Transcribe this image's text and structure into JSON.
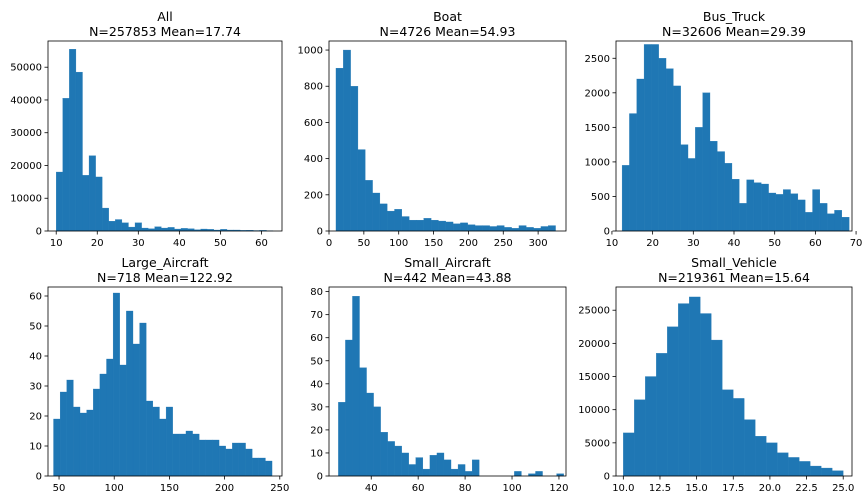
{
  "chart_data": [
    {
      "type": "bar",
      "title": "All",
      "subtitle": "N=257853 Mean=17.74",
      "xlim": [
        8,
        65
      ],
      "ylim": [
        0,
        58000
      ],
      "xticks": [
        10,
        20,
        30,
        40,
        50,
        60
      ],
      "yticks": [
        0,
        10000,
        20000,
        30000,
        40000,
        50000
      ],
      "bin_edges": [
        10,
        11.6,
        13.2,
        14.8,
        16.4,
        18,
        19.6,
        21.2,
        22.8,
        24.4,
        26,
        27.6,
        29.2,
        30.8,
        32.4,
        34,
        35.6,
        37.2,
        38.8,
        40.4,
        42,
        43.6,
        45.2,
        46.8,
        48.4,
        50,
        51.6,
        53.2,
        54.8,
        56.4,
        58,
        59.6,
        61.2,
        62.8
      ],
      "counts": [
        18000,
        40500,
        55500,
        48500,
        17000,
        23000,
        16500,
        7000,
        3000,
        3500,
        2500,
        1200,
        2500,
        900,
        700,
        1300,
        900,
        1100,
        600,
        800,
        700,
        400,
        600,
        500,
        300,
        500,
        300,
        300,
        200,
        250,
        150,
        200,
        100
      ]
    },
    {
      "type": "bar",
      "title": "Boat",
      "subtitle": "N=4726 Mean=54.93",
      "xlim": [
        0,
        340
      ],
      "ylim": [
        0,
        1050
      ],
      "xticks": [
        0,
        50,
        100,
        150,
        200,
        250,
        300
      ],
      "yticks": [
        0,
        200,
        400,
        600,
        800,
        1000
      ],
      "bin_edges": [
        10,
        20.5,
        31,
        41.5,
        52,
        62.5,
        73,
        83.5,
        94,
        104.5,
        115,
        125.5,
        136,
        146.5,
        157,
        167.5,
        178,
        188.5,
        199,
        209.5,
        220,
        230.5,
        241,
        251.5,
        262,
        272.5,
        283,
        293.5,
        304,
        314.5,
        325
      ],
      "counts": [
        900,
        1000,
        800,
        450,
        280,
        210,
        150,
        110,
        120,
        80,
        60,
        60,
        70,
        60,
        55,
        50,
        40,
        45,
        35,
        30,
        30,
        25,
        30,
        20,
        15,
        30,
        20,
        15,
        25,
        30
      ]
    },
    {
      "type": "bar",
      "title": "Bus_Truck",
      "subtitle": "N=32606 Mean=29.39",
      "xlim": [
        11,
        69
      ],
      "ylim": [
        0,
        2750
      ],
      "xticks": [
        10,
        20,
        30,
        40,
        50,
        60,
        70
      ],
      "yticks": [
        0,
        500,
        1000,
        1500,
        2000,
        2500
      ],
      "bin_edges": [
        12.5,
        14.3,
        16.1,
        17.9,
        19.7,
        21.5,
        23.3,
        25.1,
        26.9,
        28.7,
        30.5,
        32.3,
        34.1,
        35.9,
        37.7,
        39.5,
        41.3,
        43.1,
        44.9,
        46.7,
        48.5,
        50.3,
        52.1,
        53.9,
        55.7,
        57.5,
        59.3,
        61.1,
        62.9,
        64.7,
        66.5,
        68.3
      ],
      "counts": [
        950,
        1700,
        2200,
        2700,
        2700,
        2500,
        2350,
        2100,
        1250,
        1050,
        1500,
        2000,
        1300,
        1150,
        980,
        750,
        400,
        740,
        700,
        680,
        550,
        530,
        600,
        540,
        450,
        270,
        600,
        400,
        250,
        300,
        200
      ]
    },
    {
      "type": "bar",
      "title": "Large_Aircraft",
      "subtitle": "N=718 Mean=122.92",
      "xlim": [
        40,
        252
      ],
      "ylim": [
        0,
        63
      ],
      "xticks": [
        50,
        100,
        150,
        200,
        250
      ],
      "yticks": [
        0,
        10,
        20,
        30,
        40,
        50,
        60
      ],
      "bin_edges": [
        45,
        51,
        57,
        63,
        69,
        75,
        81,
        87,
        93,
        99,
        105,
        111,
        117,
        123,
        129,
        135,
        141,
        147,
        153,
        159,
        165,
        171,
        177,
        183,
        189,
        195,
        201,
        207,
        213,
        219,
        225,
        231,
        237,
        243
      ],
      "counts": [
        19,
        28,
        32,
        23,
        21,
        22,
        29,
        34,
        39,
        61,
        37,
        55,
        44,
        51,
        25,
        23,
        19,
        23,
        14,
        14,
        15,
        14,
        12,
        12,
        12,
        10,
        9,
        11,
        11,
        9,
        6,
        6,
        5
      ]
    },
    {
      "type": "bar",
      "title": "Small_Aircraft",
      "subtitle": "N=442 Mean=43.88",
      "xlim": [
        22,
        123
      ],
      "ylim": [
        0,
        82
      ],
      "xticks": [
        40,
        60,
        80,
        100,
        120
      ],
      "yticks": [
        0,
        10,
        20,
        30,
        40,
        50,
        60,
        70,
        80
      ],
      "bin_edges": [
        26,
        29,
        32,
        35,
        38,
        41,
        44,
        47,
        50,
        53,
        56,
        59,
        62,
        65,
        68,
        71,
        74,
        77,
        80,
        83,
        86,
        89,
        92,
        95,
        98,
        101,
        104,
        107,
        110,
        113,
        116,
        119,
        122
      ],
      "counts": [
        32,
        59,
        78,
        47,
        36,
        30,
        19,
        15,
        13,
        10,
        5,
        8,
        3,
        9,
        10,
        7,
        3,
        5,
        2,
        7,
        0,
        0,
        0,
        0,
        0,
        2,
        0,
        1,
        2,
        0,
        0,
        1
      ]
    },
    {
      "type": "bar",
      "title": "Small_Vehicle",
      "subtitle": "N=219361 Mean=15.64",
      "xlim": [
        9.5,
        25.6
      ],
      "ylim": [
        0,
        28500
      ],
      "xticks": [
        10.0,
        12.5,
        15.0,
        17.5,
        20.0,
        22.5,
        25.0
      ],
      "yticks": [
        0,
        5000,
        10000,
        15000,
        20000,
        25000
      ],
      "bin_edges": [
        10,
        10.75,
        11.5,
        12.25,
        13,
        13.75,
        14.5,
        15.25,
        16,
        16.75,
        17.5,
        18.25,
        19,
        19.75,
        20.5,
        21.25,
        22,
        22.75,
        23.5,
        24.25,
        25
      ],
      "counts": [
        6500,
        11500,
        15000,
        18500,
        22500,
        26000,
        27000,
        24500,
        20500,
        13000,
        11700,
        8500,
        6000,
        5000,
        3500,
        2800,
        2200,
        1500,
        1200,
        800
      ]
    }
  ]
}
